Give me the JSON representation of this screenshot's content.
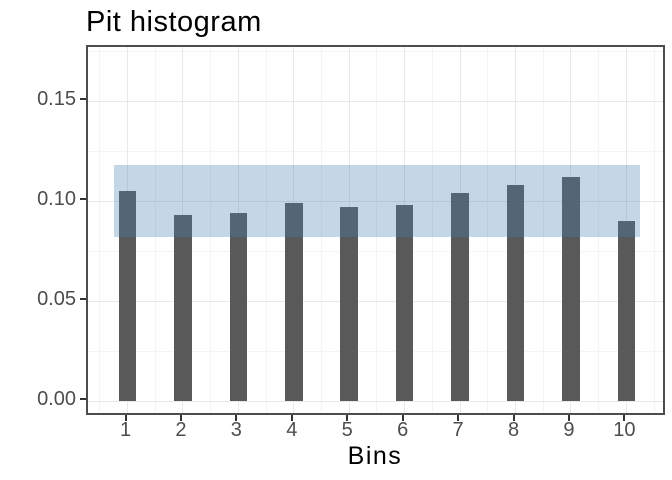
{
  "chart_data": {
    "type": "bar",
    "title": "Pit histogram",
    "xlabel": "Bins",
    "ylabel": "",
    "categories": [
      "1",
      "2",
      "3",
      "4",
      "5",
      "6",
      "7",
      "8",
      "9",
      "10"
    ],
    "values": [
      0.105,
      0.093,
      0.094,
      0.099,
      0.097,
      0.098,
      0.104,
      0.108,
      0.112,
      0.09
    ],
    "band": {
      "ymin": 0.082,
      "ymax": 0.118,
      "xmin_bin": 0.75,
      "xmax_bin": 10.25
    },
    "y_tick_values": [
      0.0,
      0.05,
      0.1,
      0.15
    ],
    "y_tick_labels": [
      "0.00",
      "0.05",
      "0.10",
      "0.15"
    ],
    "ylim": [
      -0.008,
      0.177
    ],
    "xlim_bins": [
      0.3,
      10.74
    ],
    "grid": {
      "major_y": [
        0.0,
        0.05,
        0.1,
        0.15
      ],
      "minor_y": [
        0.025,
        0.075,
        0.125,
        0.175
      ],
      "major_x_bins": [
        1,
        2,
        3,
        4,
        5,
        6,
        7,
        8,
        9,
        10
      ],
      "minor_x_bins": [
        0.5,
        1.5,
        2.5,
        3.5,
        4.5,
        5.5,
        6.5,
        7.5,
        8.5,
        9.5,
        10.5
      ]
    },
    "legend": "none",
    "colors": {
      "bar": "#595959",
      "band": "rgba(70,130,180,0.32)",
      "grid_major": "#e8e8e8",
      "grid_minor": "#f4f4f4",
      "panel_border": "#4d4d4d",
      "tick_mark": "#333333",
      "tick_label": "#4d4d4d",
      "title": "#000000"
    }
  }
}
